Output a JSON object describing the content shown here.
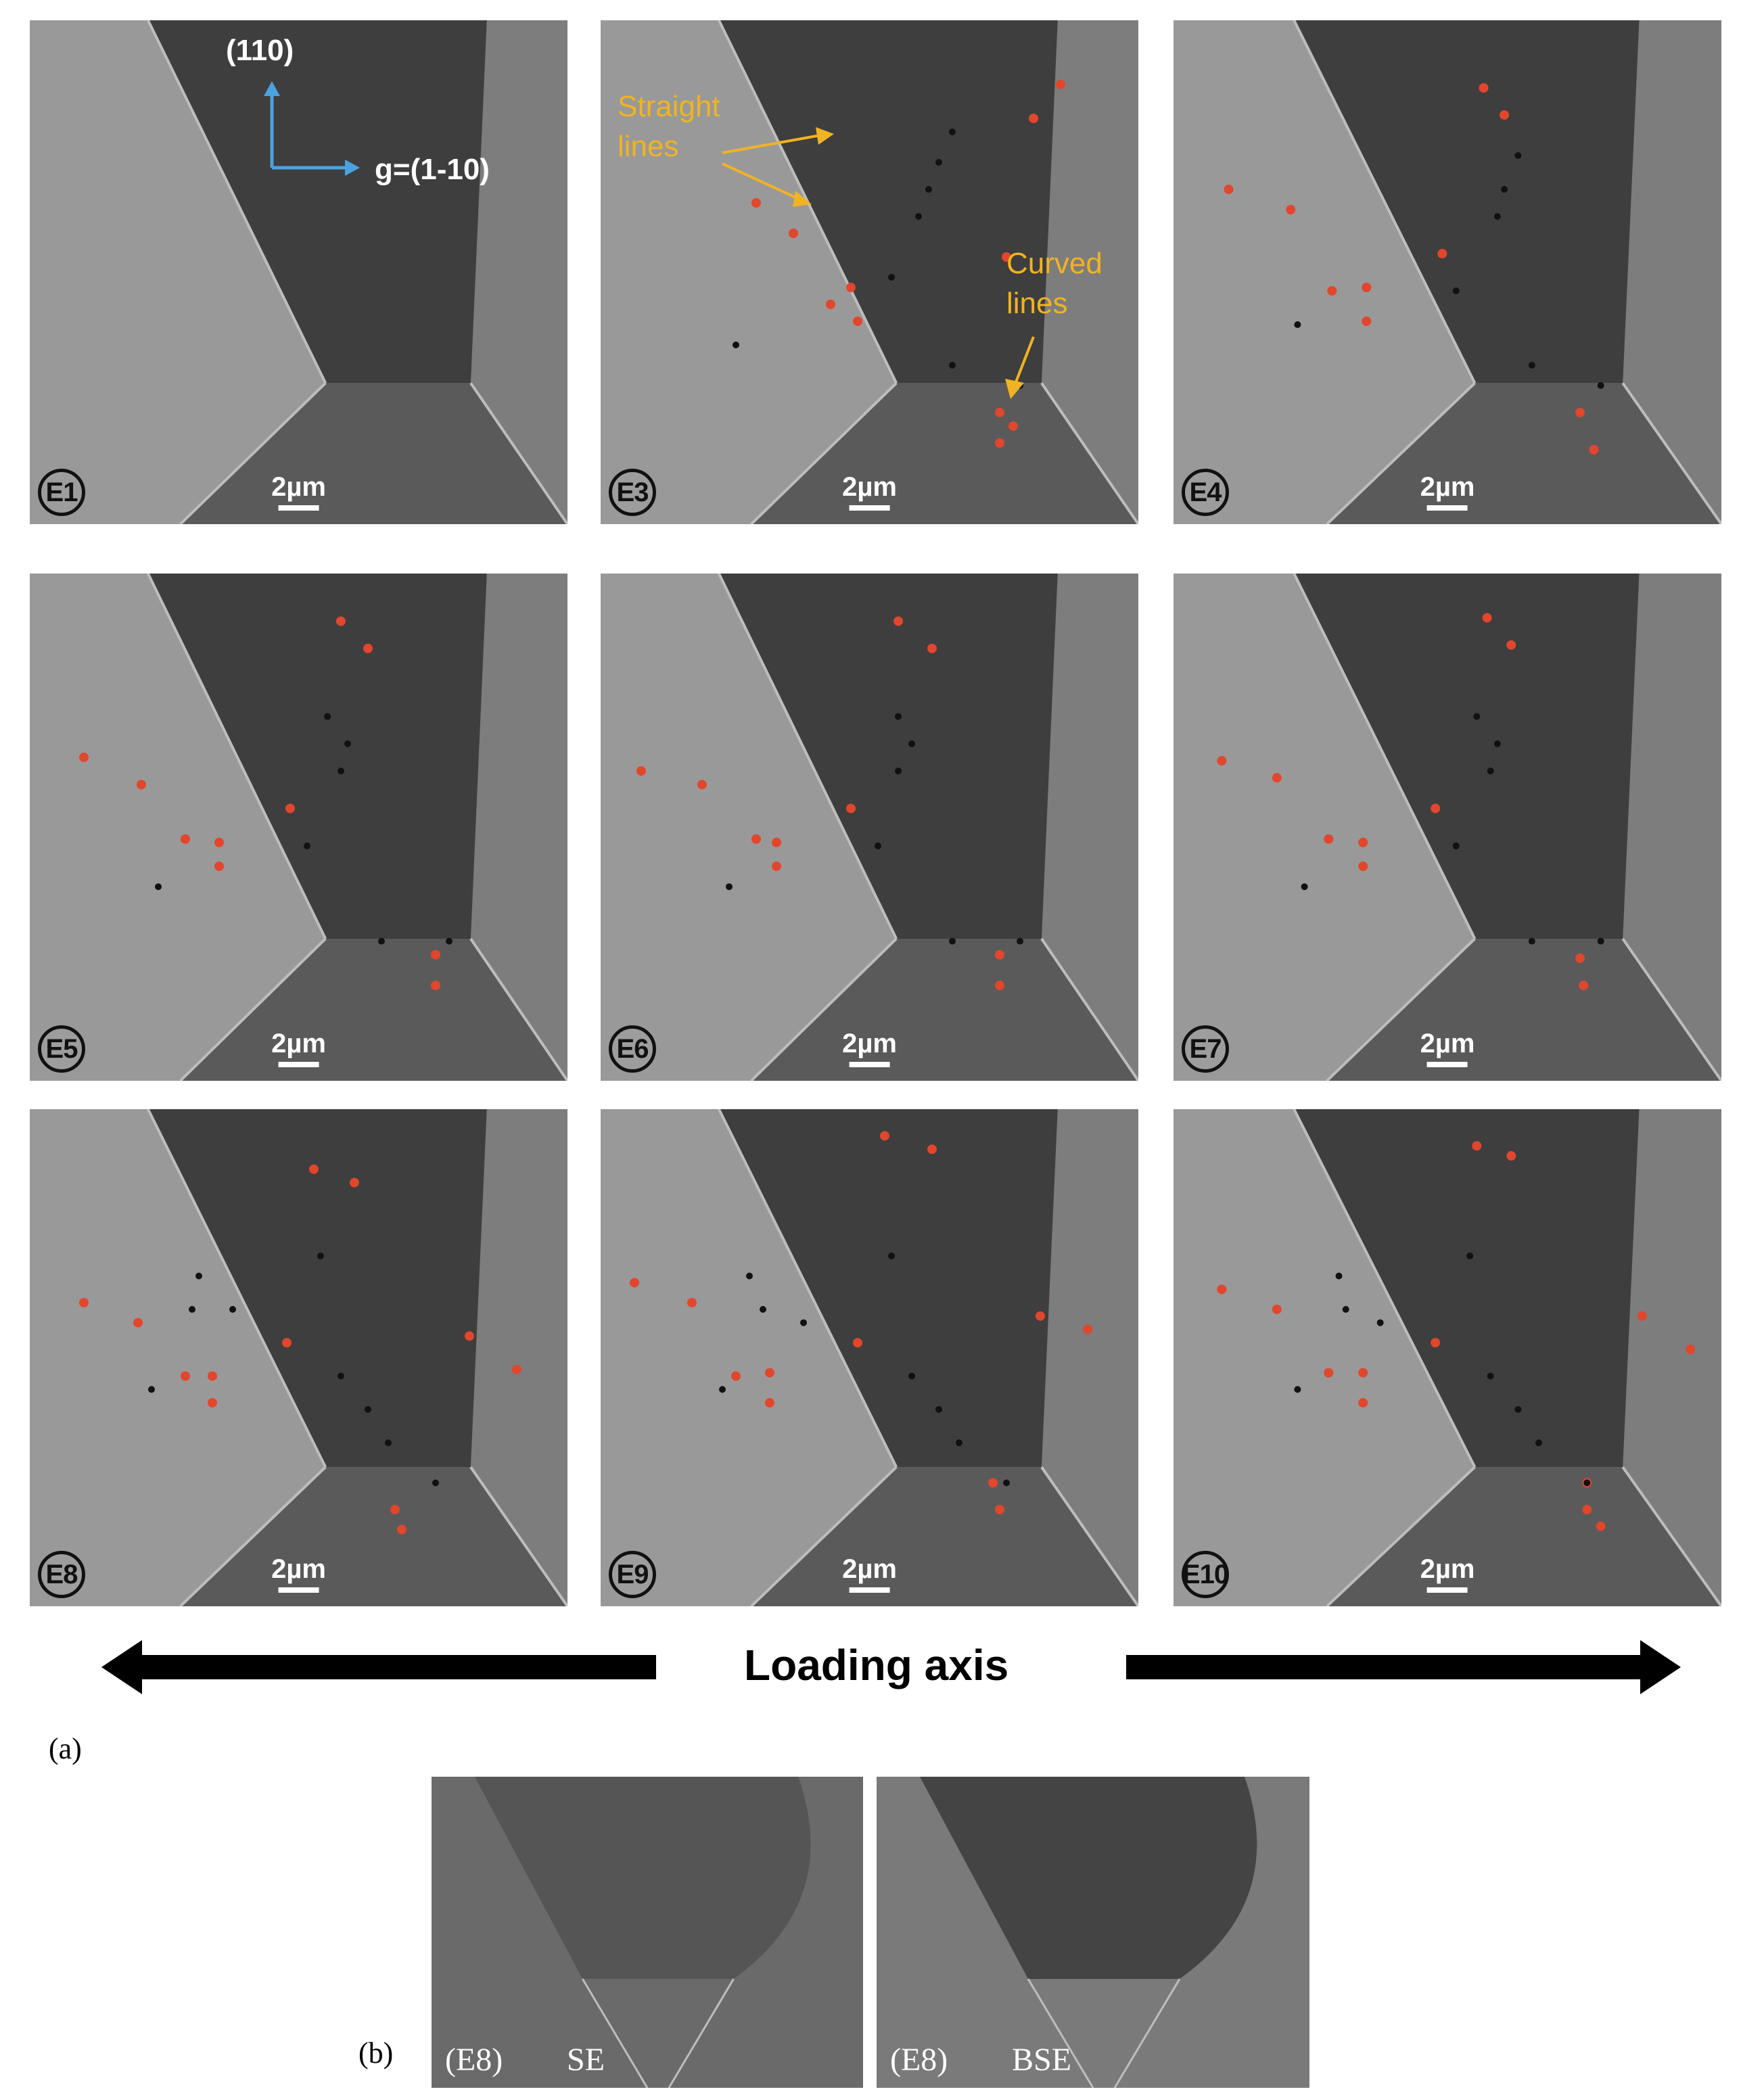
{
  "panels": [
    {
      "id": "E1",
      "label": "E1",
      "scale": "2µm"
    },
    {
      "id": "E3",
      "label": "E3",
      "scale": "2µm"
    },
    {
      "id": "E4",
      "label": "E4",
      "scale": "2µm"
    },
    {
      "id": "E5",
      "label": "E5",
      "scale": "2µm"
    },
    {
      "id": "E6",
      "label": "E6",
      "scale": "2µm"
    },
    {
      "id": "E7",
      "label": "E7",
      "scale": "2µm"
    },
    {
      "id": "E8",
      "label": "E8",
      "scale": "2µm"
    },
    {
      "id": "E9",
      "label": "E9",
      "scale": "2µm"
    },
    {
      "id": "E10",
      "label": "E10",
      "scale": "2µm"
    }
  ],
  "annotations": {
    "direction_up": "(110)",
    "direction_g": "g=(1-10)",
    "straight_line_1": "Straight",
    "straight_line_2": "lines",
    "curved_line_1": "Curved",
    "curved_line_2": "lines"
  },
  "loading_axis": "Loading axis",
  "caption_a": "(a)",
  "caption_b": "(b)",
  "bottom_panels": [
    {
      "id": "E8-SE",
      "label_id": "(E8)",
      "label_mode": "SE"
    },
    {
      "id": "E8-BSE",
      "label_id": "(E8)",
      "label_mode": "BSE"
    }
  ],
  "colors": {
    "red_marker": "#e2462c",
    "yellow_annotation": "#f0b323",
    "blue_axis": "#4aa3df",
    "grain_dark": "#3b3b3b",
    "grain_light": "#8a8a8a"
  }
}
